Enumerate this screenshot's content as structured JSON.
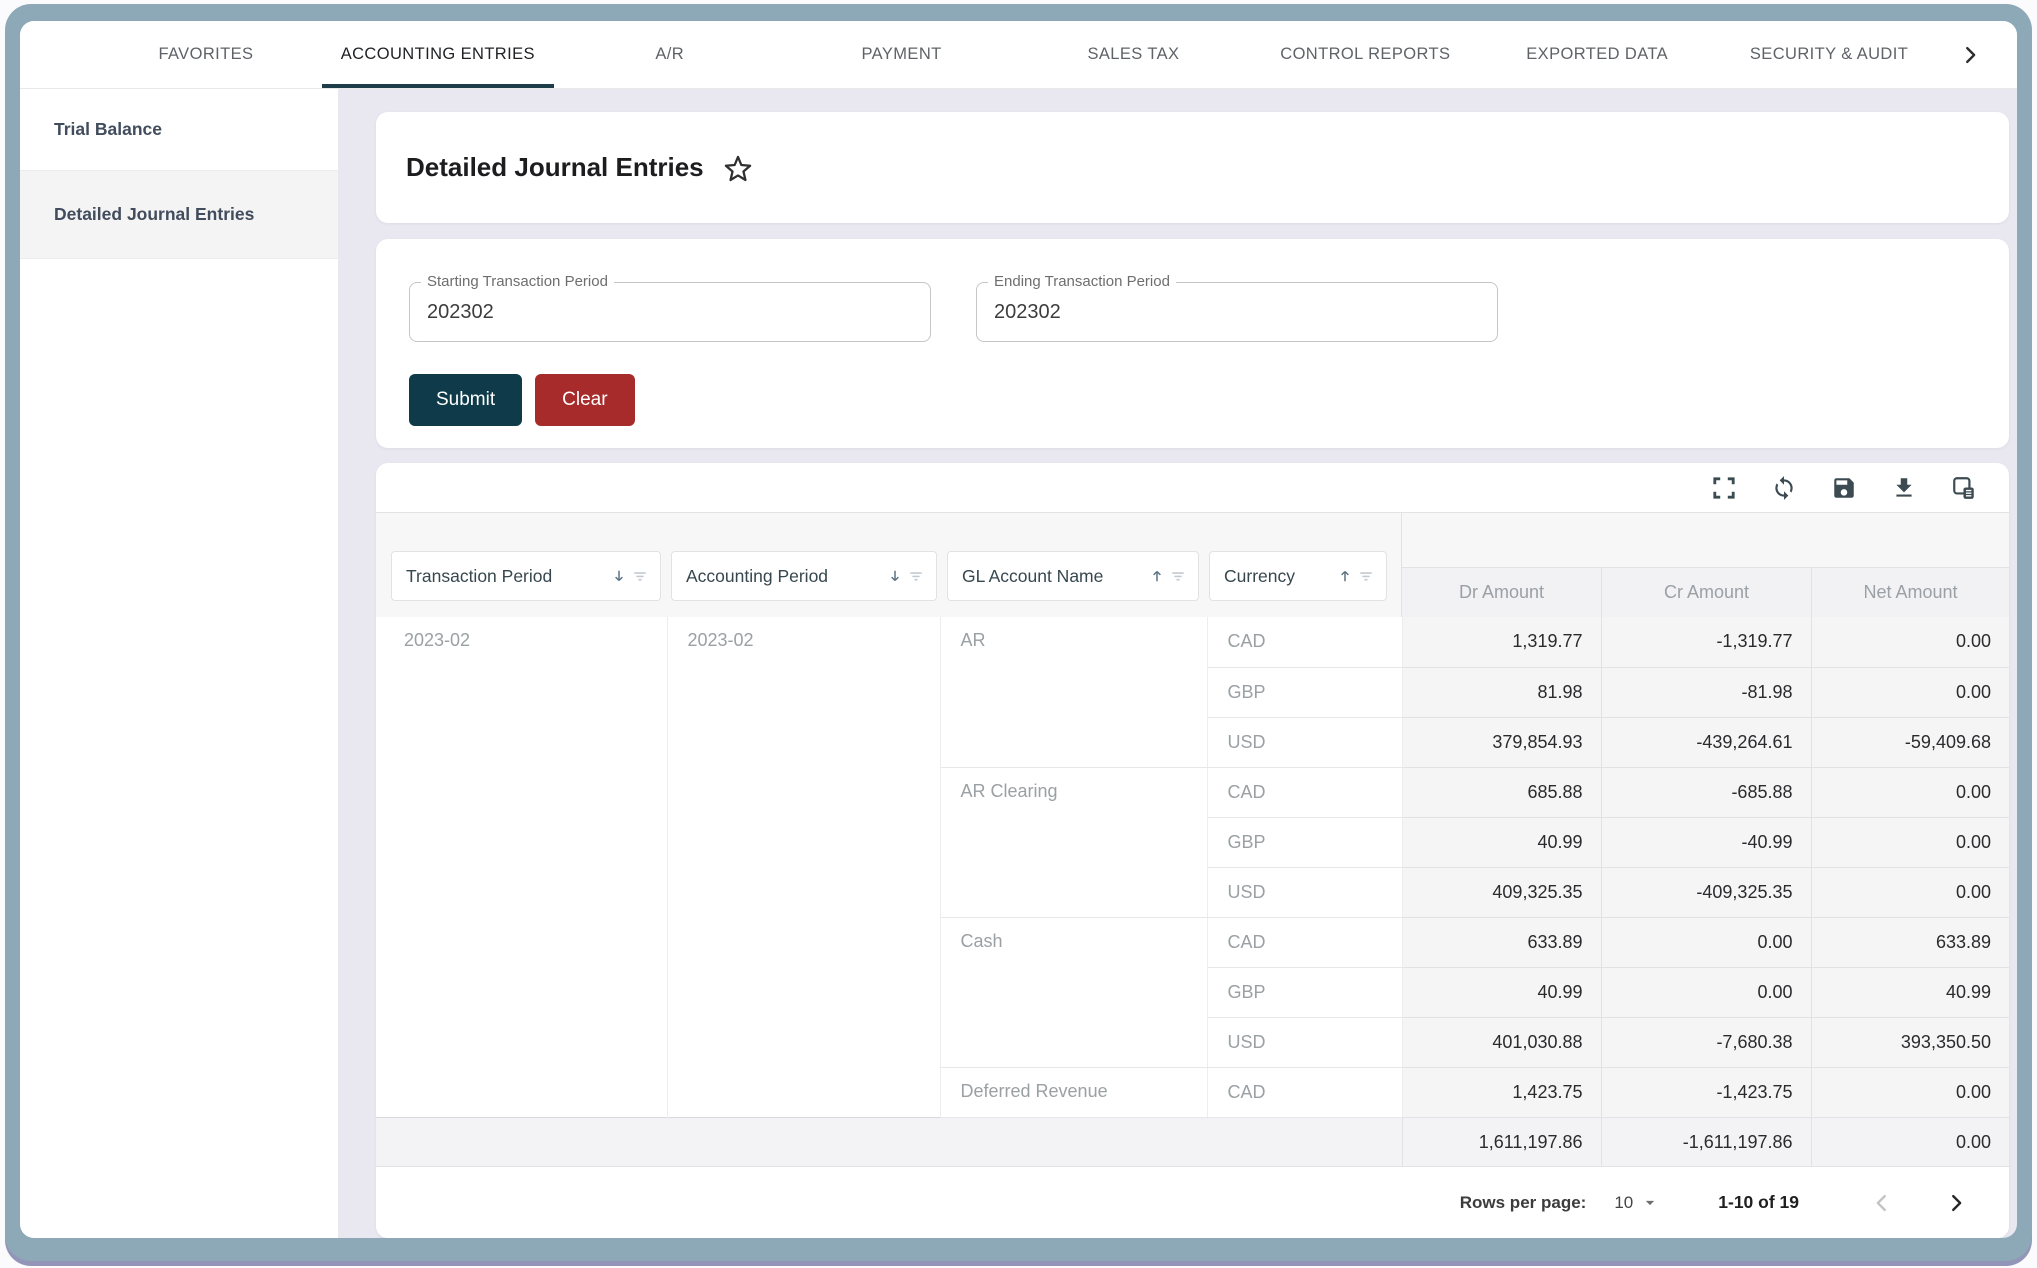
{
  "nav": {
    "tabs": [
      {
        "label": "FAVORITES",
        "active": false
      },
      {
        "label": "ACCOUNTING ENTRIES",
        "active": true
      },
      {
        "label": "A/R",
        "active": false
      },
      {
        "label": "PAYMENT",
        "active": false
      },
      {
        "label": "SALES TAX",
        "active": false
      },
      {
        "label": "CONTROL REPORTS",
        "active": false
      },
      {
        "label": "EXPORTED DATA",
        "active": false
      },
      {
        "label": "SECURITY & AUDIT",
        "active": false
      }
    ],
    "overflow_icon": "chevron-right-icon"
  },
  "sidebar": {
    "items": [
      {
        "label": "Trial Balance",
        "selected": false
      },
      {
        "label": "Detailed Journal Entries",
        "selected": true
      }
    ]
  },
  "page": {
    "title": "Detailed Journal Entries",
    "favorite_icon": "star-icon"
  },
  "form": {
    "fields": [
      {
        "label": "Starting Transaction Period",
        "value": "202302"
      },
      {
        "label": "Ending Transaction Period",
        "value": "202302"
      }
    ],
    "submit_label": "Submit",
    "clear_label": "Clear"
  },
  "toolbar": {
    "icons": [
      "fullscreen-icon",
      "refresh-icon",
      "save-icon",
      "download-icon",
      "table-view-icon"
    ]
  },
  "table": {
    "group_headers": [
      {
        "label": "Transaction Period",
        "sort": "desc"
      },
      {
        "label": "Accounting Period",
        "sort": "desc"
      },
      {
        "label": "GL Account Name",
        "sort": "asc"
      },
      {
        "label": "Currency",
        "sort": "asc"
      }
    ],
    "value_headers": [
      "Dr Amount",
      "Cr Amount",
      "Net Amount"
    ],
    "transaction_period": "2023-02",
    "accounting_period": "2023-02",
    "groups": [
      {
        "gl_account": "AR",
        "rows": [
          {
            "currency": "CAD",
            "dr": "1,319.77",
            "cr": "-1,319.77",
            "net": "0.00"
          },
          {
            "currency": "GBP",
            "dr": "81.98",
            "cr": "-81.98",
            "net": "0.00"
          },
          {
            "currency": "USD",
            "dr": "379,854.93",
            "cr": "-439,264.61",
            "net": "-59,409.68"
          }
        ]
      },
      {
        "gl_account": "AR Clearing",
        "rows": [
          {
            "currency": "CAD",
            "dr": "685.88",
            "cr": "-685.88",
            "net": "0.00"
          },
          {
            "currency": "GBP",
            "dr": "40.99",
            "cr": "-40.99",
            "net": "0.00"
          },
          {
            "currency": "USD",
            "dr": "409,325.35",
            "cr": "-409,325.35",
            "net": "0.00"
          }
        ]
      },
      {
        "gl_account": "Cash",
        "rows": [
          {
            "currency": "CAD",
            "dr": "633.89",
            "cr": "0.00",
            "net": "633.89"
          },
          {
            "currency": "GBP",
            "dr": "40.99",
            "cr": "0.00",
            "net": "40.99"
          },
          {
            "currency": "USD",
            "dr": "401,030.88",
            "cr": "-7,680.38",
            "net": "393,350.50"
          }
        ]
      },
      {
        "gl_account": "Deferred Revenue",
        "rows": [
          {
            "currency": "CAD",
            "dr": "1,423.75",
            "cr": "-1,423.75",
            "net": "0.00"
          }
        ]
      }
    ],
    "totals": {
      "dr": "1,611,197.86",
      "cr": "-1,611,197.86",
      "net": "0.00"
    }
  },
  "pagination": {
    "rows_per_page_label": "Rows per page:",
    "rows_per_page_value": "10",
    "range_label": "1-10 of 19",
    "prev_icon": "chevron-left-icon",
    "next_icon": "chevron-right-icon"
  },
  "colors": {
    "frame": "#8da8b6",
    "content_background": "#e9e8f1",
    "accent_dark_teal": "#0e3a49",
    "danger_red": "#a72b2b",
    "active_tab_underline": "#1d3d49"
  }
}
